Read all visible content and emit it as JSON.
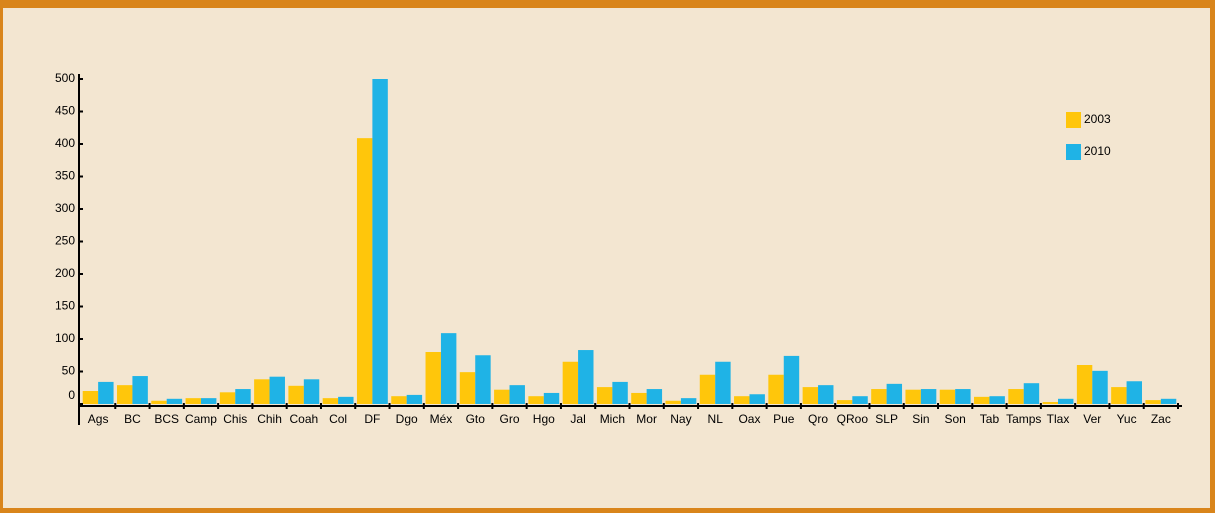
{
  "chart_data": {
    "type": "bar",
    "categories": [
      "Ags",
      "BC",
      "BCS",
      "Camp",
      "Chis",
      "Chih",
      "Coah",
      "Col",
      "DF",
      "Dgo",
      "Méx",
      "Gto",
      "Gro",
      "Hgo",
      "Jal",
      "Mich",
      "Mor",
      "Nay",
      "NL",
      "Oax",
      "Pue",
      "Qro",
      "QRoo",
      "SLP",
      "Sin",
      "Son",
      "Tab",
      "Tamps",
      "Tlax",
      "Ver",
      "Yuc",
      "Zac"
    ],
    "series": [
      {
        "name": "2003",
        "color": "#ffc60b",
        "values": [
          20,
          29,
          5,
          9,
          18,
          38,
          28,
          9,
          409,
          12,
          80,
          49,
          22,
          12,
          65,
          26,
          17,
          5,
          45,
          12,
          45,
          26,
          6,
          23,
          22,
          22,
          11,
          23,
          3,
          60,
          26,
          6
        ]
      },
      {
        "name": "2010",
        "color": "#1fb3e6",
        "values": [
          34,
          43,
          8,
          9,
          23,
          42,
          38,
          11,
          500,
          14,
          109,
          75,
          29,
          17,
          83,
          34,
          23,
          9,
          65,
          15,
          74,
          29,
          12,
          31,
          23,
          23,
          12,
          32,
          8,
          51,
          35,
          8
        ]
      }
    ],
    "ylim": [
      0,
      500
    ],
    "yticks": [
      0,
      50,
      100,
      150,
      200,
      250,
      300,
      350,
      400,
      450,
      500
    ],
    "legend": "upper right"
  }
}
